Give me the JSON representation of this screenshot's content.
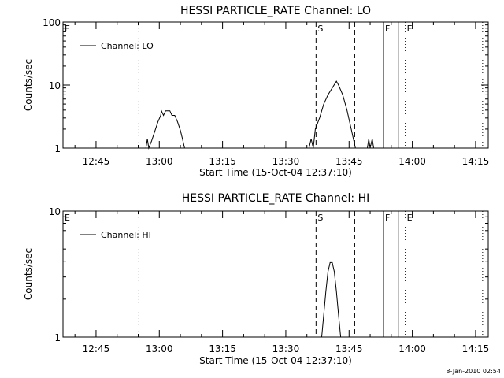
{
  "chart_data": [
    {
      "type": "line",
      "title": "HESSI PARTICLE_RATE Channel: LO",
      "xlabel": "Start Time (15-Oct-04 12:37:10)",
      "ylabel": "Counts/sec",
      "y_scale": "log",
      "ylim": [
        1,
        100
      ],
      "y_ticks": [
        {
          "value": 1,
          "label": "1"
        },
        {
          "value": 10,
          "label": "10"
        },
        {
          "value": 100,
          "label": "100"
        }
      ],
      "xlim": [
        "12:37:10",
        "14:18:00"
      ],
      "x_ticks": [
        {
          "value": "12:45",
          "label": "12:45"
        },
        {
          "value": "13:00",
          "label": "13:00"
        },
        {
          "value": "13:15",
          "label": "13:15"
        },
        {
          "value": "13:30",
          "label": "13:30"
        },
        {
          "value": "13:45",
          "label": "13:45"
        },
        {
          "value": "14:00",
          "label": "14:00"
        },
        {
          "value": "14:15",
          "label": "14:15"
        }
      ],
      "legend": {
        "placement": "top-left",
        "entries": [
          "Channel: LO"
        ]
      },
      "series": [
        {
          "name": "Channel: LO",
          "points": [
            [
              "12:56:50",
              1.0
            ],
            [
              "12:57:10",
              1.4
            ],
            [
              "12:57:30",
              1.0
            ],
            [
              "12:58:10",
              1.3
            ],
            [
              "12:59:00",
              1.9
            ],
            [
              "12:59:40",
              2.6
            ],
            [
              "13:00:20",
              3.3
            ],
            [
              "13:00:30",
              3.9
            ],
            [
              "13:01:00",
              3.3
            ],
            [
              "13:01:30",
              3.9
            ],
            [
              "13:02:00",
              3.9
            ],
            [
              "13:02:30",
              3.9
            ],
            [
              "13:03:00",
              3.3
            ],
            [
              "13:03:40",
              3.3
            ],
            [
              "13:04:20",
              2.6
            ],
            [
              "13:05:00",
              1.9
            ],
            [
              "13:05:30",
              1.4
            ],
            [
              "13:06:00",
              1.0
            ],
            [
              "13:35:30",
              1.0
            ],
            [
              "13:36:00",
              1.4
            ],
            [
              "13:36:30",
              1.0
            ],
            [
              "13:37:00",
              2.0
            ],
            [
              "13:38:00",
              3.0
            ],
            [
              "13:39:00",
              5.0
            ],
            [
              "13:40:00",
              7.0
            ],
            [
              "13:41:00",
              9.0
            ],
            [
              "13:42:00",
              11.5
            ],
            [
              "13:42:30",
              10.0
            ],
            [
              "13:43:30",
              7.0
            ],
            [
              "13:44:30",
              4.0
            ],
            [
              "13:45:30",
              2.0
            ],
            [
              "13:46:30",
              1.0
            ],
            [
              "13:49:20",
              1.0
            ],
            [
              "13:49:40",
              1.4
            ],
            [
              "13:50:00",
              1.0
            ],
            [
              "13:50:30",
              1.4
            ],
            [
              "13:50:50",
              1.0
            ]
          ]
        }
      ],
      "vertical_markers": [
        {
          "time": "12:55:10",
          "style": "dotted",
          "label": ""
        },
        {
          "time": "13:37:10",
          "style": "dashed",
          "label": "S"
        },
        {
          "time": "13:46:20",
          "style": "dashed",
          "label": ""
        },
        {
          "time": "13:53:10",
          "style": "solid",
          "label": "F"
        },
        {
          "time": "13:56:40",
          "style": "solid",
          "label": ""
        },
        {
          "time": "13:58:20",
          "style": "dotted",
          "label": "E"
        },
        {
          "time": "14:16:40",
          "style": "dotted",
          "label": ""
        }
      ],
      "corner_label": "E"
    },
    {
      "type": "line",
      "title": "HESSI PARTICLE_RATE Channel: HI",
      "xlabel": "Start Time (15-Oct-04 12:37:10)",
      "ylabel": "Counts/sec",
      "y_scale": "log",
      "ylim": [
        1,
        10
      ],
      "y_ticks": [
        {
          "value": 1,
          "label": "1"
        },
        {
          "value": 10,
          "label": "10"
        }
      ],
      "xlim": [
        "12:37:10",
        "14:18:00"
      ],
      "x_ticks": [
        {
          "value": "12:45",
          "label": "12:45"
        },
        {
          "value": "13:00",
          "label": "13:00"
        },
        {
          "value": "13:15",
          "label": "13:15"
        },
        {
          "value": "13:30",
          "label": "13:30"
        },
        {
          "value": "13:45",
          "label": "13:45"
        },
        {
          "value": "14:00",
          "label": "14:00"
        },
        {
          "value": "14:15",
          "label": "14:15"
        }
      ],
      "legend": {
        "placement": "top-left",
        "entries": [
          "Channel: HI"
        ]
      },
      "series": [
        {
          "name": "Channel: HI",
          "points": [
            [
              "13:38:30",
              1.0
            ],
            [
              "13:39:00",
              1.5
            ],
            [
              "13:39:30",
              2.3
            ],
            [
              "13:40:00",
              3.3
            ],
            [
              "13:40:30",
              3.9
            ],
            [
              "13:41:00",
              3.9
            ],
            [
              "13:41:30",
              3.3
            ],
            [
              "13:42:00",
              2.3
            ],
            [
              "13:42:30",
              1.5
            ],
            [
              "13:43:00",
              1.0
            ]
          ]
        }
      ],
      "vertical_markers": [
        {
          "time": "12:55:10",
          "style": "dotted",
          "label": ""
        },
        {
          "time": "13:37:10",
          "style": "dashed",
          "label": "S"
        },
        {
          "time": "13:46:20",
          "style": "dashed",
          "label": ""
        },
        {
          "time": "13:53:10",
          "style": "solid",
          "label": "F"
        },
        {
          "time": "13:56:40",
          "style": "solid",
          "label": ""
        },
        {
          "time": "13:58:20",
          "style": "dotted",
          "label": "E"
        },
        {
          "time": "14:16:40",
          "style": "dotted",
          "label": ""
        }
      ],
      "corner_label": "E"
    }
  ],
  "footer": {
    "timestamp": "8-Jan-2010 02:54"
  }
}
